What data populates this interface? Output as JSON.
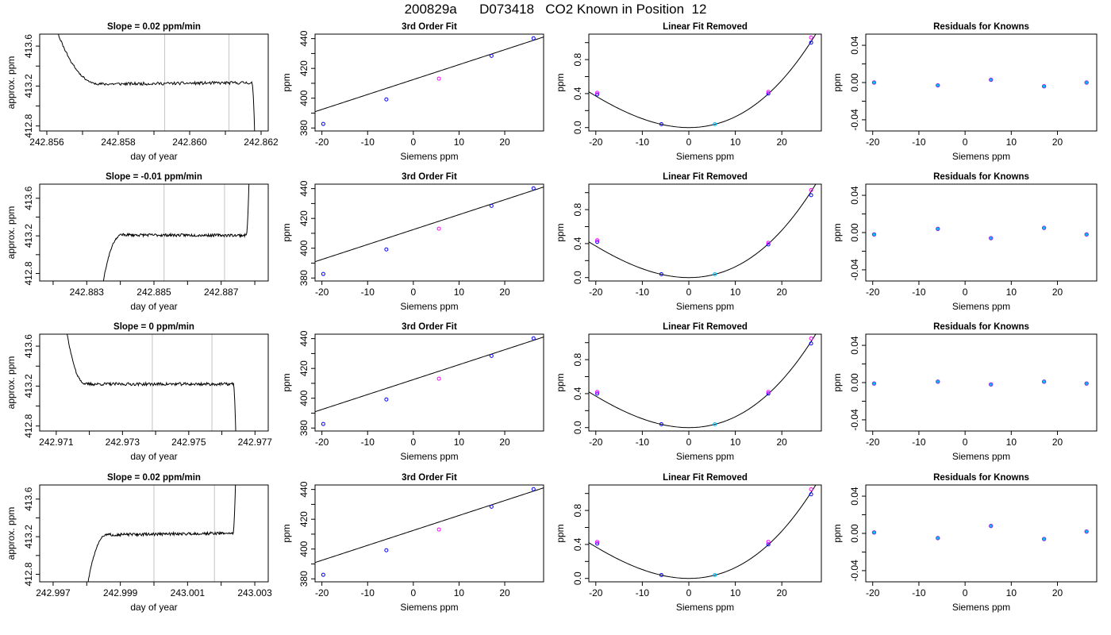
{
  "figure": {
    "title": "200829a      D073418   CO2 Known in Position  12"
  },
  "chart_data": [
    {
      "row": 1,
      "type": "line",
      "title": "Slope =  0.02  ppm/min",
      "xlabel": "day of year",
      "ylabel": "approx. ppm",
      "xlim": [
        242.8558,
        242.8622
      ],
      "ylim": [
        412.75,
        413.72
      ],
      "xticks": [
        242.856,
        242.858,
        242.86,
        242.862
      ],
      "xtick_labels": [
        "242.856",
        "242.858",
        "242.860",
        "242.862"
      ],
      "xminor": [
        242.857,
        242.859,
        242.861
      ],
      "yticks": [
        412.8,
        413.2,
        413.6
      ],
      "ytick_labels": [
        "412.8",
        "413.2",
        "413.6"
      ],
      "yminor": [
        413.0,
        413.4
      ],
      "vlines": [
        242.8593,
        242.8611
      ],
      "grid": false,
      "trace": {
        "shape": "start-high",
        "start": 242.8561,
        "end": 242.86185,
        "plateau": 413.22,
        "lead": 0.0014,
        "tail": 0.0001,
        "drift": 0.015,
        "ext": 413.95,
        "seed": 11
      }
    },
    {
      "row": 1,
      "type": "line",
      "title": "3rd Order Fit",
      "xlabel": "Siemens ppm",
      "ylabel": "ppm",
      "xlim": [
        -21.5,
        28.5
      ],
      "ylim": [
        378,
        443
      ],
      "xticks": [
        -20,
        -10,
        0,
        10,
        20
      ],
      "xtick_labels": [
        "-20",
        "-10",
        "0",
        "10",
        "20"
      ],
      "yticks": [
        380,
        400,
        420,
        440
      ],
      "ytick_labels": [
        "380",
        "400",
        "420",
        "440"
      ],
      "yminor": [
        390,
        410,
        430
      ],
      "fit": {
        "a": 412.5,
        "b": 1.0025,
        "c": 0,
        "d": 0
      },
      "points": [
        {
          "x": -19.7,
          "y": 382.7,
          "color": "#0000ff"
        },
        {
          "x": -5.9,
          "y": 399.2,
          "color": "#0000ff"
        },
        {
          "x": 5.6,
          "y": 413.1,
          "color": "#ff00ff"
        },
        {
          "x": 17.1,
          "y": 428.4,
          "color": "#0000ff"
        },
        {
          "x": 26.3,
          "y": 440.2,
          "color": "#0000ff"
        }
      ]
    },
    {
      "row": 1,
      "type": "line",
      "title": "Linear Fit Removed",
      "xlabel": "Siemens ppm",
      "ylabel": "ppm",
      "xlim": [
        -21.5,
        28.5
      ],
      "ylim": [
        -0.04,
        1.1
      ],
      "xticks": [
        -20,
        -10,
        0,
        10,
        20
      ],
      "xtick_labels": [
        "-20",
        "-10",
        "0",
        "10",
        "20"
      ],
      "yticks": [
        0.0,
        0.4,
        0.8
      ],
      "ytick_labels": [
        "0.0",
        "0.4",
        "0.8"
      ],
      "yminor": [
        0.2,
        0.6,
        1.0
      ],
      "fit": {
        "a": 0,
        "b": 0,
        "c": 0.00116,
        "d": 1.16e-05
      },
      "points": [
        {
          "x": -19.7,
          "y": 0.39,
          "color": "#0000ff"
        },
        {
          "x": -19.7,
          "y": 0.41,
          "color": "#ff00ff"
        },
        {
          "x": -5.9,
          "y": 0.04,
          "color": "#0000ff"
        },
        {
          "x": 5.6,
          "y": 0.04,
          "color": "#00bfff"
        },
        {
          "x": 17.1,
          "y": 0.4,
          "color": "#0000ff"
        },
        {
          "x": 17.1,
          "y": 0.42,
          "color": "#ff00ff"
        },
        {
          "x": 26.3,
          "y": 1.0,
          "color": "#0000ff"
        },
        {
          "x": 26.3,
          "y": 1.06,
          "color": "#ff00ff"
        }
      ]
    },
    {
      "row": 1,
      "type": "scatter",
      "title": "Residuals for Knowns",
      "xlabel": "Siemens ppm",
      "ylabel": "ppm",
      "xlim": [
        -21.5,
        28.5
      ],
      "ylim": [
        -0.052,
        0.052
      ],
      "xticks": [
        -20,
        -10,
        0,
        10,
        20
      ],
      "xtick_labels": [
        "-20",
        "-10",
        "0",
        "10",
        "20"
      ],
      "yticks": [
        -0.04,
        0.0,
        0.04
      ],
      "ytick_labels": [
        "-0.04",
        "0.00",
        "0.04"
      ],
      "yminor": [
        -0.02,
        0.02
      ],
      "points": [
        {
          "x": -19.7,
          "y": 0.0
        },
        {
          "x": -5.9,
          "y": -0.003
        },
        {
          "x": 5.6,
          "y": 0.003
        },
        {
          "x": 17.1,
          "y": -0.004
        },
        {
          "x": 26.3,
          "y": 0.0
        }
      ]
    },
    {
      "row": 2,
      "type": "line",
      "title": "Slope =  -0.01  ppm/min",
      "xlabel": "day of year",
      "ylabel": "approx. ppm",
      "xlim": [
        242.8816,
        242.8884
      ],
      "ylim": [
        412.72,
        413.75
      ],
      "xticks": [
        242.883,
        242.885,
        242.887
      ],
      "xtick_labels": [
        "242.883",
        "242.885",
        "242.887"
      ],
      "xminor": [
        242.882,
        242.884,
        242.886,
        242.888
      ],
      "yticks": [
        412.8,
        413.2,
        413.6
      ],
      "ytick_labels": [
        "412.8",
        "413.2",
        "413.6"
      ],
      "yminor": [
        413.0,
        413.4
      ],
      "vlines": [
        242.8853,
        242.8871
      ],
      "grid": false,
      "trace": {
        "shape": "rise-both",
        "start": 242.88335,
        "end": 242.88785,
        "plateau": 413.21,
        "lead": 0.0007,
        "tail": 0.0001,
        "drift": -0.005,
        "ext": 412.4,
        "extHigh": 414.1,
        "seed": 23
      }
    },
    {
      "row": 2,
      "type": "line",
      "title": "3rd Order Fit",
      "xlabel": "Siemens ppm",
      "ylabel": "ppm",
      "xlim": [
        -21.5,
        28.5
      ],
      "ylim": [
        378,
        443
      ],
      "xticks": [
        -20,
        -10,
        0,
        10,
        20
      ],
      "xtick_labels": [
        "-20",
        "-10",
        "0",
        "10",
        "20"
      ],
      "yticks": [
        380,
        400,
        420,
        440
      ],
      "ytick_labels": [
        "380",
        "400",
        "420",
        "440"
      ],
      "yminor": [
        390,
        410,
        430
      ],
      "fit": {
        "a": 412.5,
        "b": 1.0025,
        "c": 0,
        "d": 0
      },
      "points": [
        {
          "x": -19.7,
          "y": 382.7,
          "color": "#0000ff"
        },
        {
          "x": -5.9,
          "y": 399.2,
          "color": "#0000ff"
        },
        {
          "x": 5.6,
          "y": 413.1,
          "color": "#ff00ff"
        },
        {
          "x": 17.1,
          "y": 428.4,
          "color": "#0000ff"
        },
        {
          "x": 26.3,
          "y": 440.2,
          "color": "#0000ff"
        }
      ]
    },
    {
      "row": 2,
      "type": "line",
      "title": "Linear Fit Removed",
      "xlabel": "Siemens ppm",
      "ylabel": "ppm",
      "xlim": [
        -21.5,
        28.5
      ],
      "ylim": [
        -0.04,
        1.1
      ],
      "xticks": [
        -20,
        -10,
        0,
        10,
        20
      ],
      "xtick_labels": [
        "-20",
        "-10",
        "0",
        "10",
        "20"
      ],
      "yticks": [
        0.0,
        0.4,
        0.8
      ],
      "ytick_labels": [
        "0.0",
        "0.4",
        "0.8"
      ],
      "yminor": [
        0.2,
        0.6,
        1.0
      ],
      "fit": {
        "a": 0,
        "b": 0,
        "c": 0.00116,
        "d": 1.16e-05
      },
      "points": [
        {
          "x": -19.7,
          "y": 0.42,
          "color": "#0000ff"
        },
        {
          "x": -19.7,
          "y": 0.44,
          "color": "#ff00ff"
        },
        {
          "x": -5.9,
          "y": 0.04,
          "color": "#0000ff"
        },
        {
          "x": 5.6,
          "y": 0.04,
          "color": "#00bfff"
        },
        {
          "x": 17.1,
          "y": 0.39,
          "color": "#0000ff"
        },
        {
          "x": 17.1,
          "y": 0.41,
          "color": "#ff00ff"
        },
        {
          "x": 26.3,
          "y": 0.97,
          "color": "#0000ff"
        },
        {
          "x": 26.3,
          "y": 1.03,
          "color": "#ff00ff"
        }
      ]
    },
    {
      "row": 2,
      "type": "scatter",
      "title": "Residuals for Knowns",
      "xlabel": "Siemens ppm",
      "ylabel": "ppm",
      "xlim": [
        -21.5,
        28.5
      ],
      "ylim": [
        -0.052,
        0.052
      ],
      "xticks": [
        -20,
        -10,
        0,
        10,
        20
      ],
      "xtick_labels": [
        "-20",
        "-10",
        "0",
        "10",
        "20"
      ],
      "yticks": [
        -0.04,
        0.0,
        0.04
      ],
      "ytick_labels": [
        "-0.04",
        "0.00",
        "0.04"
      ],
      "yminor": [
        -0.02,
        0.02
      ],
      "points": [
        {
          "x": -19.7,
          "y": -0.002
        },
        {
          "x": -5.9,
          "y": 0.004
        },
        {
          "x": 5.6,
          "y": -0.006
        },
        {
          "x": 17.1,
          "y": 0.005
        },
        {
          "x": 26.3,
          "y": -0.002
        }
      ]
    },
    {
      "row": 3,
      "type": "line",
      "title": "Slope =  0  ppm/min",
      "xlabel": "day of year",
      "ylabel": "approx. ppm",
      "xlim": [
        242.9705,
        242.9774
      ],
      "ylim": [
        412.75,
        413.72
      ],
      "xticks": [
        242.971,
        242.973,
        242.975,
        242.977
      ],
      "xtick_labels": [
        "242.971",
        "242.973",
        "242.975",
        "242.977"
      ],
      "xminor": [
        242.972,
        242.974,
        242.976
      ],
      "yticks": [
        412.8,
        413.2,
        413.6
      ],
      "ytick_labels": [
        "412.8",
        "413.2",
        "413.6"
      ],
      "yminor": [
        413.0,
        413.4
      ],
      "vlines": [
        242.9739,
        242.9757
      ],
      "grid": false,
      "trace": {
        "shape": "start-high",
        "start": 242.9712,
        "end": 242.97645,
        "plateau": 413.22,
        "lead": 0.0007,
        "tail": 0.0001,
        "drift": 0.0,
        "ext": 414.0,
        "seed": 37
      }
    },
    {
      "row": 3,
      "type": "line",
      "title": "3rd Order Fit",
      "xlabel": "Siemens ppm",
      "ylabel": "ppm",
      "xlim": [
        -21.5,
        28.5
      ],
      "ylim": [
        378,
        443
      ],
      "xticks": [
        -20,
        -10,
        0,
        10,
        20
      ],
      "xtick_labels": [
        "-20",
        "-10",
        "0",
        "10",
        "20"
      ],
      "yticks": [
        380,
        400,
        420,
        440
      ],
      "ytick_labels": [
        "380",
        "400",
        "420",
        "440"
      ],
      "yminor": [
        390,
        410,
        430
      ],
      "fit": {
        "a": 412.5,
        "b": 1.0025,
        "c": 0,
        "d": 0
      },
      "points": [
        {
          "x": -19.7,
          "y": 382.7,
          "color": "#0000ff"
        },
        {
          "x": -5.9,
          "y": 399.2,
          "color": "#0000ff"
        },
        {
          "x": 5.6,
          "y": 413.1,
          "color": "#ff00ff"
        },
        {
          "x": 17.1,
          "y": 428.4,
          "color": "#0000ff"
        },
        {
          "x": 26.3,
          "y": 440.2,
          "color": "#0000ff"
        }
      ]
    },
    {
      "row": 3,
      "type": "line",
      "title": "Linear Fit Removed",
      "xlabel": "Siemens ppm",
      "ylabel": "ppm",
      "xlim": [
        -21.5,
        28.5
      ],
      "ylim": [
        -0.04,
        1.1
      ],
      "xticks": [
        -20,
        -10,
        0,
        10,
        20
      ],
      "xtick_labels": [
        "-20",
        "-10",
        "0",
        "10",
        "20"
      ],
      "yticks": [
        0.0,
        0.4,
        0.8
      ],
      "ytick_labels": [
        "0.0",
        "0.4",
        "0.8"
      ],
      "yminor": [
        0.2,
        0.6,
        1.0
      ],
      "fit": {
        "a": 0,
        "b": 0,
        "c": 0.00116,
        "d": 1.16e-05
      },
      "points": [
        {
          "x": -19.7,
          "y": 0.4,
          "color": "#0000ff"
        },
        {
          "x": -19.7,
          "y": 0.42,
          "color": "#ff00ff"
        },
        {
          "x": -5.9,
          "y": 0.04,
          "color": "#0000ff"
        },
        {
          "x": 5.6,
          "y": 0.04,
          "color": "#00bfff"
        },
        {
          "x": 17.1,
          "y": 0.4,
          "color": "#0000ff"
        },
        {
          "x": 17.1,
          "y": 0.42,
          "color": "#ff00ff"
        },
        {
          "x": 26.3,
          "y": 0.99,
          "color": "#0000ff"
        },
        {
          "x": 26.3,
          "y": 1.05,
          "color": "#ff00ff"
        }
      ]
    },
    {
      "row": 3,
      "type": "scatter",
      "title": "Residuals for Knowns",
      "xlabel": "Siemens ppm",
      "ylabel": "ppm",
      "xlim": [
        -21.5,
        28.5
      ],
      "ylim": [
        -0.052,
        0.052
      ],
      "xticks": [
        -20,
        -10,
        0,
        10,
        20
      ],
      "xtick_labels": [
        "-20",
        "-10",
        "0",
        "10",
        "20"
      ],
      "yticks": [
        -0.04,
        0.0,
        0.04
      ],
      "ytick_labels": [
        "-0.04",
        "0.00",
        "0.04"
      ],
      "yminor": [
        -0.02,
        0.02
      ],
      "points": [
        {
          "x": -19.7,
          "y": -0.001
        },
        {
          "x": -5.9,
          "y": 0.001
        },
        {
          "x": 5.6,
          "y": -0.002
        },
        {
          "x": 17.1,
          "y": 0.001
        },
        {
          "x": 26.3,
          "y": -0.001
        }
      ]
    },
    {
      "row": 4,
      "type": "line",
      "title": "Slope =  0.02  ppm/min",
      "xlabel": "day of year",
      "ylabel": "approx. ppm",
      "xlim": [
        242.9966,
        243.0034
      ],
      "ylim": [
        412.72,
        413.75
      ],
      "xticks": [
        242.997,
        242.999,
        243.001,
        243.003
      ],
      "xtick_labels": [
        "242.997",
        "242.999",
        "243.001",
        "243.003"
      ],
      "xminor": [
        242.998,
        243.0,
        243.002
      ],
      "yticks": [
        412.8,
        413.2,
        413.6
      ],
      "ytick_labels": [
        "412.8",
        "413.2",
        "413.6"
      ],
      "yminor": [
        413.0,
        413.4
      ],
      "vlines": [
        243.0,
        243.0018
      ],
      "grid": false,
      "trace": {
        "shape": "rise-both",
        "start": 242.9979,
        "end": 243.00245,
        "plateau": 413.22,
        "lead": 0.0007,
        "tail": 0.0001,
        "drift": 0.02,
        "ext": 412.4,
        "extHigh": 414.1,
        "seed": 51
      }
    },
    {
      "row": 4,
      "type": "line",
      "title": "3rd Order Fit",
      "xlabel": "Siemens ppm",
      "ylabel": "ppm",
      "xlim": [
        -21.5,
        28.5
      ],
      "ylim": [
        378,
        443
      ],
      "xticks": [
        -20,
        -10,
        0,
        10,
        20
      ],
      "xtick_labels": [
        "-20",
        "-10",
        "0",
        "10",
        "20"
      ],
      "yticks": [
        380,
        400,
        420,
        440
      ],
      "ytick_labels": [
        "380",
        "400",
        "420",
        "440"
      ],
      "yminor": [
        390,
        410,
        430
      ],
      "fit": {
        "a": 412.5,
        "b": 1.0025,
        "c": 0,
        "d": 0
      },
      "points": [
        {
          "x": -19.7,
          "y": 382.7,
          "color": "#0000ff"
        },
        {
          "x": -5.9,
          "y": 399.2,
          "color": "#0000ff"
        },
        {
          "x": 5.6,
          "y": 413.1,
          "color": "#ff00ff"
        },
        {
          "x": 17.1,
          "y": 428.4,
          "color": "#0000ff"
        },
        {
          "x": 26.3,
          "y": 440.2,
          "color": "#0000ff"
        }
      ]
    },
    {
      "row": 4,
      "type": "line",
      "title": "Linear Fit Removed",
      "xlabel": "Siemens ppm",
      "ylabel": "ppm",
      "xlim": [
        -21.5,
        28.5
      ],
      "ylim": [
        -0.04,
        1.1
      ],
      "xticks": [
        -20,
        -10,
        0,
        10,
        20
      ],
      "xtick_labels": [
        "-20",
        "-10",
        "0",
        "10",
        "20"
      ],
      "yticks": [
        0.0,
        0.4,
        0.8
      ],
      "ytick_labels": [
        "0.0",
        "0.4",
        "0.8"
      ],
      "yminor": [
        0.2,
        0.6,
        1.0
      ],
      "fit": {
        "a": 0,
        "b": 0,
        "c": 0.00116,
        "d": 1.16e-05
      },
      "points": [
        {
          "x": -19.7,
          "y": 0.41,
          "color": "#0000ff"
        },
        {
          "x": -19.7,
          "y": 0.43,
          "color": "#ff00ff"
        },
        {
          "x": -5.9,
          "y": 0.04,
          "color": "#0000ff"
        },
        {
          "x": 5.6,
          "y": 0.04,
          "color": "#00bfff"
        },
        {
          "x": 17.1,
          "y": 0.4,
          "color": "#0000ff"
        },
        {
          "x": 17.1,
          "y": 0.43,
          "color": "#ff00ff"
        },
        {
          "x": 26.3,
          "y": 0.99,
          "color": "#0000ff"
        },
        {
          "x": 26.3,
          "y": 1.05,
          "color": "#ff00ff"
        }
      ]
    },
    {
      "row": 4,
      "type": "scatter",
      "title": "Residuals for Knowns",
      "xlabel": "Siemens ppm",
      "ylabel": "ppm",
      "xlim": [
        -21.5,
        28.5
      ],
      "ylim": [
        -0.052,
        0.052
      ],
      "xticks": [
        -20,
        -10,
        0,
        10,
        20
      ],
      "xtick_labels": [
        "-20",
        "-10",
        "0",
        "10",
        "20"
      ],
      "yticks": [
        -0.04,
        0.0,
        0.04
      ],
      "ytick_labels": [
        "-0.04",
        "0.00",
        "0.04"
      ],
      "yminor": [
        -0.02,
        0.02
      ],
      "points": [
        {
          "x": -19.7,
          "y": 0.001
        },
        {
          "x": -5.9,
          "y": -0.005
        },
        {
          "x": 5.6,
          "y": 0.008
        },
        {
          "x": 17.1,
          "y": -0.006
        },
        {
          "x": 26.3,
          "y": 0.002
        }
      ]
    }
  ],
  "colors": {
    "trace": "#000000",
    "vline": "#c8c8c8",
    "residual_fill": "#00bfff",
    "residual_edge": "#8a2be2"
  }
}
